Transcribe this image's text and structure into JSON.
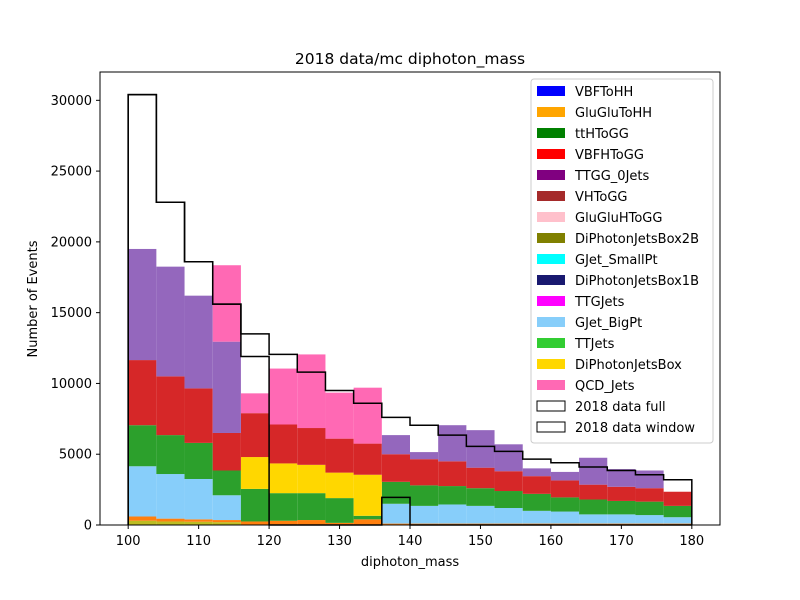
{
  "chart_data": {
    "type": "bar",
    "title": "2018 data/mc diphoton_mass",
    "xlabel": "diphoton_mass",
    "ylabel": "Number of Events",
    "xlim": [
      96,
      184
    ],
    "ylim": [
      0,
      32000
    ],
    "xticks": [
      100,
      110,
      120,
      130,
      140,
      150,
      160,
      170,
      180
    ],
    "yticks": [
      0,
      5000,
      10000,
      15000,
      20000,
      25000,
      30000
    ],
    "bin_edges": [
      100,
      104,
      108,
      112,
      116,
      120,
      124,
      128,
      132,
      136,
      140,
      144,
      148,
      152,
      156,
      160,
      164,
      168,
      172,
      176,
      180
    ],
    "legend_position": "top-right",
    "stack_bounds": [
      [
        0,
        0,
        0,
        0,
        0,
        0,
        0,
        0,
        0,
        0,
        0,
        0,
        0,
        0,
        0,
        0,
        0,
        0,
        0,
        0
      ],
      [
        300,
        250,
        230,
        200,
        0,
        0,
        0,
        0,
        0,
        0,
        0,
        0,
        0,
        0,
        0,
        0,
        0,
        0,
        0,
        0
      ],
      [
        600,
        450,
        400,
        350,
        250,
        300,
        350,
        150,
        400,
        100,
        100,
        100,
        100,
        100,
        100,
        100,
        100,
        100,
        100,
        100
      ],
      [
        4150,
        3600,
        3250,
        2100,
        250,
        300,
        350,
        150,
        400,
        1500,
        1350,
        1450,
        1350,
        1200,
        1000,
        950,
        750,
        750,
        700,
        550
      ],
      [
        7050,
        6350,
        5800,
        3850,
        2550,
        2250,
        2250,
        1900,
        650,
        3050,
        2800,
        2750,
        2600,
        2400,
        2200,
        1950,
        1800,
        1700,
        1650,
        1350
      ],
      [
        7050,
        6350,
        5800,
        3850,
        4800,
        4350,
        4250,
        3700,
        3550,
        3050,
        2800,
        2750,
        2600,
        2400,
        2200,
        1950,
        1800,
        1700,
        1650,
        1350
      ],
      [
        11650,
        10500,
        9650,
        6500,
        7900,
        7100,
        6850,
        6100,
        5750,
        5000,
        4650,
        4500,
        4050,
        3800,
        3450,
        3150,
        2850,
        2700,
        2600,
        2350
      ],
      [
        11650,
        10500,
        9650,
        6500,
        7900,
        7100,
        6850,
        6100,
        5750,
        5000,
        4650,
        4500,
        4050,
        3800,
        3450,
        3150,
        2850,
        2700,
        2600,
        2350
      ],
      [
        19500,
        18250,
        16200,
        12950,
        7900,
        7100,
        6850,
        6100,
        5750,
        6350,
        5150,
        7050,
        6700,
        5700,
        4000,
        3750,
        4750,
        3950,
        3850,
        2350
      ],
      [
        19500,
        18250,
        16200,
        18350,
        9300,
        11050,
        12050,
        9350,
        9700,
        6350,
        5150,
        7050,
        6700,
        5700,
        4000,
        3750,
        4750,
        3950,
        3850,
        2350
      ]
    ],
    "stack_colors": [
      "#1f77b4",
      "#bcbd22",
      "#ff7f0e",
      "#87cefa",
      "#2ca02c",
      "#ffd700",
      "#d62728",
      "#32cd32",
      "#9467bd",
      "#ff69b4"
    ],
    "data_step": {
      "name": "2018 data window",
      "values": [
        30400,
        22800,
        18600,
        15600,
        11900,
        0,
        0,
        0,
        0,
        1950,
        0,
        0,
        0,
        0,
        0,
        0,
        0,
        0,
        0,
        0
      ]
    },
    "data_full": {
      "name": "2018 data full",
      "values": [
        30400,
        22800,
        18600,
        15600,
        13500,
        12050,
        10800,
        9500,
        8600,
        7600,
        7050,
        6350,
        5550,
        5200,
        4650,
        4400,
        4100,
        3850,
        3550,
        3200
      ]
    },
    "legend": [
      {
        "label": "VBFToHH",
        "color": "#0000ff"
      },
      {
        "label": "GluGluToHH",
        "color": "#ffa500"
      },
      {
        "label": "ttHToGG",
        "color": "#008000"
      },
      {
        "label": "VBFHToGG",
        "color": "#ff0000"
      },
      {
        "label": "TTGG_0Jets",
        "color": "#800080"
      },
      {
        "label": "VHToGG",
        "color": "#a52a2a"
      },
      {
        "label": "GluGluHToGG",
        "color": "#ffc0cb"
      },
      {
        "label": "DiPhotonJetsBox2B",
        "color": "#808000"
      },
      {
        "label": "GJet_SmallPt",
        "color": "#00ffff"
      },
      {
        "label": "DiPhotonJetsBox1B",
        "color": "#191970"
      },
      {
        "label": "TTGJets",
        "color": "#ff00ff"
      },
      {
        "label": "GJet_BigPt",
        "color": "#87cefa"
      },
      {
        "label": "TTJets",
        "color": "#32cd32"
      },
      {
        "label": "DiPhotonJetsBox",
        "color": "#ffd700"
      },
      {
        "label": "QCD_Jets",
        "color": "#ff69b4"
      },
      {
        "label": "2018 data full",
        "color": "#ffffff",
        "outline": "#000000"
      },
      {
        "label": "2018 data window",
        "color": "#ffffff",
        "outline": "#000000"
      }
    ]
  }
}
